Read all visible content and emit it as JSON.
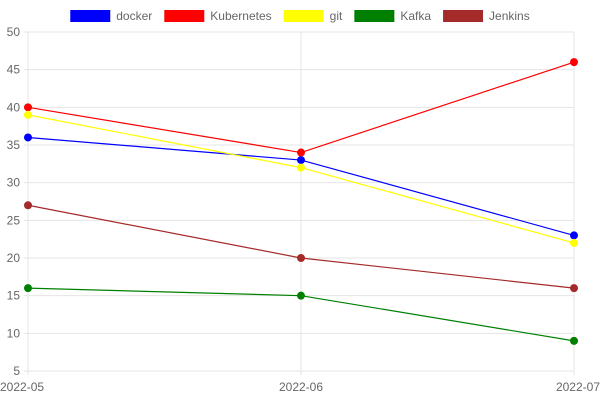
{
  "chart_data": {
    "type": "line",
    "title": "",
    "xlabel": "",
    "ylabel": "",
    "categories": [
      "2022-05",
      "2022-06",
      "2022-07"
    ],
    "ylim": [
      5,
      50
    ],
    "y_ticks": [
      5,
      10,
      15,
      20,
      25,
      30,
      35,
      40,
      45,
      50
    ],
    "grid": true,
    "legend_position": "top",
    "series": [
      {
        "name": "docker",
        "color": "#0000ff",
        "values": [
          36,
          33,
          23
        ]
      },
      {
        "name": "Kubernetes",
        "color": "#ff0000",
        "values": [
          40,
          34,
          46
        ]
      },
      {
        "name": "git",
        "color": "#ffff00",
        "values": [
          39,
          32,
          22
        ]
      },
      {
        "name": "Kafka",
        "color": "#008000",
        "values": [
          16,
          15,
          9
        ]
      },
      {
        "name": "Jenkins",
        "color": "#a52a2a",
        "values": [
          27,
          20,
          16
        ]
      }
    ]
  }
}
